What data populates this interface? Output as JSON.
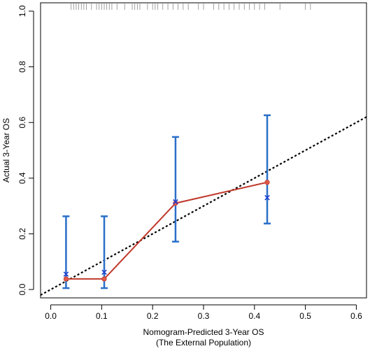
{
  "chart_data": {
    "type": "scatter",
    "title": "",
    "xlabel": "Nomogram-Predicted 3-Year OS",
    "xlabel_sub": "(The External Population)",
    "ylabel": "Actual 3-Year OS",
    "xlim": [
      -0.02,
      0.62
    ],
    "ylim": [
      -0.03,
      1.03
    ],
    "x_ticks": [
      0.0,
      0.1,
      0.2,
      0.3,
      0.4,
      0.5,
      0.6
    ],
    "x_tick_labels": [
      "0.0",
      "0.1",
      "0.2",
      "0.3",
      "0.4",
      "0.5",
      "0.6"
    ],
    "y_ticks": [
      0.0,
      0.2,
      0.4,
      0.6,
      0.8,
      1.0
    ],
    "y_tick_labels": [
      "0.0",
      "0.2",
      "0.4",
      "0.6",
      "0.8",
      "1.0"
    ],
    "grid": false,
    "legend": "none",
    "reference_line": {
      "style": "dotted",
      "color": "#000000",
      "from": [
        -0.02,
        -0.02
      ],
      "to": [
        0.62,
        0.62
      ]
    },
    "series": [
      {
        "kind": "observed",
        "color": "#c0392b",
        "x": [
          0.03,
          0.105,
          0.245,
          0.425
        ],
        "y": [
          0.038,
          0.038,
          0.31,
          0.385
        ]
      },
      {
        "kind": "error_bars",
        "color": "#2a6fc9",
        "x": [
          0.03,
          0.105,
          0.245,
          0.425
        ],
        "lower": [
          0.005,
          0.005,
          0.172,
          0.237
        ],
        "upper": [
          0.263,
          0.263,
          0.548,
          0.626
        ]
      },
      {
        "kind": "bias_corrected",
        "marker": "x",
        "color": "#1f3fd1",
        "x": [
          0.03,
          0.105,
          0.245,
          0.425
        ],
        "y": [
          0.055,
          0.062,
          0.315,
          0.33
        ]
      }
    ],
    "rug": [
      0.04,
      0.045,
      0.05,
      0.055,
      0.06,
      0.065,
      0.07,
      0.08,
      0.09,
      0.095,
      0.1,
      0.105,
      0.11,
      0.115,
      0.12,
      0.13,
      0.145,
      0.16,
      0.165,
      0.17,
      0.175,
      0.19,
      0.2,
      0.205,
      0.21,
      0.22,
      0.23,
      0.24,
      0.25,
      0.26,
      0.27,
      0.29,
      0.3,
      0.32,
      0.33,
      0.34,
      0.35,
      0.36,
      0.37,
      0.38,
      0.39,
      0.4,
      0.41,
      0.42,
      0.45,
      0.5,
      0.51
    ]
  }
}
